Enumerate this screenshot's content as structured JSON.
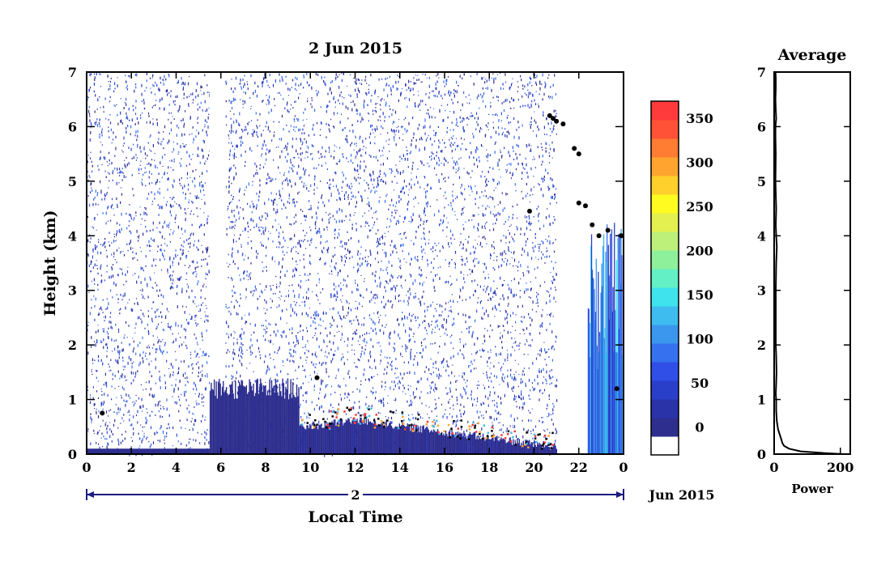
{
  "chart_data": [
    {
      "type": "heatmap",
      "title": "2 Jun 2015",
      "xlabel": "Local Time",
      "ylabel": "Height (km)",
      "xlim": [
        0,
        24
      ],
      "ylim": [
        0,
        7
      ],
      "x_ticks": [
        "0",
        "2",
        "4",
        "6",
        "8",
        "10",
        "12",
        "14",
        "16",
        "18",
        "20",
        "22",
        "0"
      ],
      "y_ticks": [
        "0",
        "1",
        "2",
        "3",
        "4",
        "5",
        "6",
        "7"
      ],
      "date_bar_label": "2",
      "date_suffix": "Jun 2015",
      "colorbar": {
        "min": 0,
        "max": 380,
        "ticks": [
          "0",
          "50",
          "100",
          "150",
          "200",
          "250",
          "300",
          "350"
        ],
        "colors": [
          "#ffffff",
          "#2d2e8e",
          "#2b33a8",
          "#2a3fc9",
          "#2f4fe6",
          "#3671ef",
          "#3b97ee",
          "#3fbcef",
          "#3fe3ee",
          "#63f0c4",
          "#8ff09b",
          "#bcf07a",
          "#e3f04f",
          "#fffa20",
          "#ffd02b",
          "#ffa52f",
          "#ff7c33",
          "#ff5236",
          "#ff3a3a"
        ]
      },
      "regions": [
        {
          "label": "scattered noise",
          "x": [
            0,
            5.5
          ],
          "y": [
            0,
            7
          ],
          "level": 40
        },
        {
          "label": "data gap",
          "x": [
            5.5,
            6.2
          ],
          "y": [
            0,
            7
          ],
          "level": 0
        },
        {
          "label": "noise",
          "x": [
            6.2,
            21
          ],
          "y": [
            0,
            7
          ],
          "level": 40
        },
        {
          "label": "boundary layer echo",
          "x": [
            5.5,
            9.5
          ],
          "y": [
            0,
            1.3
          ],
          "level": 30
        },
        {
          "label": "rain shafts",
          "x": [
            22.4,
            24
          ],
          "y": [
            0,
            4.5
          ],
          "level": 100
        }
      ]
    },
    {
      "type": "line",
      "title": "Average",
      "xlabel": "Power",
      "ylabel": "",
      "xlim": [
        0,
        230
      ],
      "ylim": [
        0,
        7
      ],
      "x_ticks": [
        "0",
        "200"
      ],
      "y_ticks": [
        "0",
        "1",
        "2",
        "3",
        "4",
        "5",
        "6",
        "7"
      ],
      "series": [
        {
          "x": [
            210,
            150,
            80,
            45,
            30,
            25,
            20,
            12,
            8,
            6,
            6,
            5,
            6,
            7,
            6,
            5,
            5,
            5,
            6,
            8,
            6,
            5,
            6,
            4,
            5,
            4,
            4,
            6,
            5,
            4,
            5,
            5,
            5,
            4
          ],
          "y": [
            0,
            0.02,
            0.05,
            0.1,
            0.15,
            0.2,
            0.3,
            0.45,
            0.6,
            0.8,
            1.0,
            1.1,
            1.3,
            1.5,
            1.8,
            2.0,
            2.5,
            3.0,
            3.5,
            3.8,
            4.0,
            4.2,
            4.5,
            5.0,
            5.5,
            5.8,
            6.0,
            6.15,
            6.3,
            6.5,
            6.7,
            6.8,
            6.9,
            7.0
          ]
        }
      ]
    }
  ]
}
